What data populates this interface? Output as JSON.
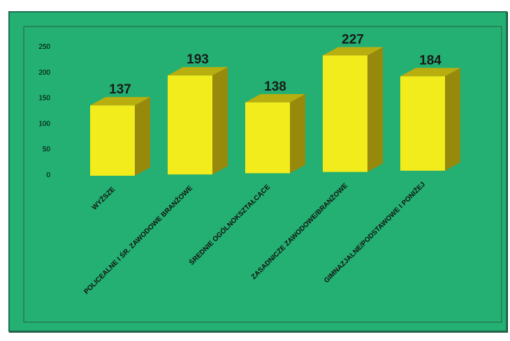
{
  "chart_data": {
    "type": "bar",
    "style": "3d-column",
    "categories": [
      "WYŻSZE",
      "POLICEALNE I ŚR. ZAWODOWE BRANŻOWE",
      "ŚREDNIE OGÓLNOKSZTAŁCĄCE",
      "ZASADNICZE ZAWODOWE/BRANŻOWE",
      "GIMNAZJALNE/PODSTAWOWE I PONIŻEJ"
    ],
    "values": [
      137,
      193,
      138,
      227,
      184
    ],
    "data_labels": [
      "137",
      "193",
      "138",
      "227",
      "184"
    ],
    "y_ticks": [
      "0",
      "50",
      "100",
      "150",
      "200",
      "250"
    ],
    "title": "",
    "xlabel": "",
    "ylabel": "",
    "ylim": [
      0,
      250
    ],
    "grid": false,
    "legend": "none",
    "colors": {
      "background": "#23b072",
      "plot_area_border": "#2c5e46",
      "bar_front": "#f3ec1c",
      "bar_top": "#b8ae0f",
      "bar_side": "#97890c",
      "data_label": "#1a1a1a"
    }
  }
}
